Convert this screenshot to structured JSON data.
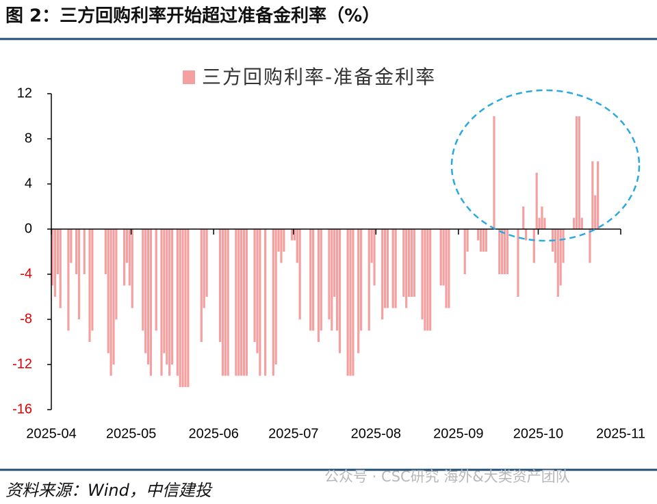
{
  "header": {
    "title": "图 2：三方回购利率开始超过准备金利率（%）"
  },
  "chart_data": {
    "type": "bar",
    "x": [
      0,
      1,
      2,
      3,
      6,
      7,
      9,
      10,
      12,
      14,
      15,
      20,
      21,
      22,
      23,
      24,
      27,
      28,
      29,
      30,
      34,
      35,
      36,
      37,
      39,
      41,
      42,
      43,
      44,
      45,
      47,
      48,
      49,
      50,
      51,
      56,
      57,
      58,
      63,
      64,
      65,
      66,
      69,
      70,
      71,
      72,
      73,
      76,
      77,
      78,
      80,
      83,
      84,
      85,
      86,
      87,
      90,
      91,
      92,
      93,
      97,
      98,
      100,
      101,
      104,
      105,
      106,
      107,
      108,
      111,
      112,
      113,
      115,
      116,
      119,
      120,
      121,
      124,
      125,
      126,
      128,
      129,
      132,
      133,
      134,
      135,
      136,
      139,
      140,
      141,
      142,
      146,
      147,
      148,
      149,
      155,
      156,
      160,
      161,
      162,
      163,
      166,
      168,
      169,
      170,
      171,
      175,
      177,
      178,
      181,
      182,
      183,
      184,
      185,
      188,
      189,
      190,
      191,
      192,
      196,
      197,
      198,
      199,
      202,
      203,
      204,
      205
    ],
    "series": [
      {
        "name": "三方回购利率-准备金利率",
        "color": "#f4a0a0",
        "values": [
          -5,
          -6,
          -4,
          -7,
          -9,
          -3,
          -4,
          -8,
          -4,
          -10,
          -9,
          -4,
          -11,
          -13,
          -12,
          -8,
          -5,
          -3,
          -5,
          -7,
          -9,
          -11,
          -12,
          -13,
          -9,
          -13,
          -11,
          -12,
          -13,
          -12,
          -13,
          -14,
          -14,
          -14,
          -14,
          -10,
          -7,
          -6,
          -10,
          -13,
          -13,
          -13,
          -13,
          -13,
          -13,
          -13,
          -13,
          -10,
          -11,
          -13,
          -13,
          -13,
          -12,
          -2,
          -3,
          -2,
          -1,
          -1,
          -3,
          -8,
          -9,
          -9,
          -10,
          -9,
          -8,
          -9,
          -6,
          -9,
          -11,
          -13,
          -13,
          -13,
          -11,
          -9,
          -9,
          -3,
          -5,
          -8,
          -7,
          -7,
          -7,
          -7,
          -6,
          -7,
          -6,
          -6,
          -6,
          -8,
          -9,
          -9,
          -9,
          -5,
          -5,
          -7,
          -7,
          -4,
          -2,
          -1,
          -2,
          -2,
          -2,
          10,
          -4,
          -4,
          -4,
          -4,
          -6,
          2,
          -1,
          -3,
          5,
          1,
          2,
          1,
          -2,
          -3,
          -6,
          -5,
          -3,
          1,
          10,
          10,
          1,
          -3,
          6,
          3,
          6
        ]
      }
    ],
    "xlim": [
      0,
      214
    ],
    "xticks": [
      {
        "value": 0,
        "label": "2025-04"
      },
      {
        "value": 30,
        "label": "2025-05"
      },
      {
        "value": 61,
        "label": "2025-06"
      },
      {
        "value": 91,
        "label": "2025-07"
      },
      {
        "value": 122,
        "label": "2025-08"
      },
      {
        "value": 153,
        "label": "2025-09"
      },
      {
        "value": 183,
        "label": "2025-10"
      },
      {
        "value": 214,
        "label": "2025-11"
      }
    ],
    "ylim": [
      -16,
      12
    ],
    "yticks": [
      -16,
      -12,
      -8,
      -4,
      0,
      4,
      8,
      12
    ],
    "negative_tick_color": "#e00000"
  },
  "source": "资料来源：Wind，中信建投",
  "watermark": "公众号 · CSC研究 海外&大类资产团队"
}
